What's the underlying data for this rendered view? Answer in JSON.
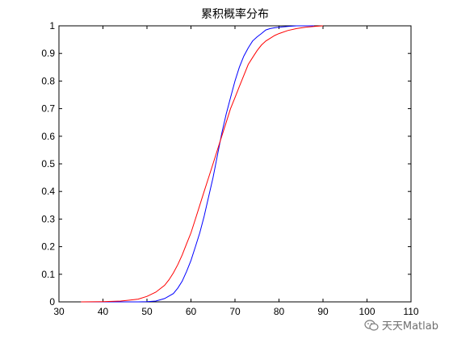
{
  "chart_data": {
    "type": "line",
    "title": "累积概率分布",
    "xlabel": "",
    "ylabel": "",
    "xlim": [
      30,
      110
    ],
    "ylim": [
      0,
      1
    ],
    "xticks": [
      "30",
      "40",
      "50",
      "60",
      "70",
      "80",
      "90",
      "100",
      "110"
    ],
    "yticks": [
      "0",
      "0.1",
      "0.2",
      "0.3",
      "0.4",
      "0.5",
      "0.6",
      "0.7",
      "0.8",
      "0.9",
      "1"
    ],
    "grid": false,
    "legend": "none",
    "series": [
      {
        "color": "#0000ff",
        "x": [
          35,
          40,
          45,
          48,
          50,
          52,
          54,
          56,
          57,
          58,
          59,
          60,
          61,
          62,
          63,
          64,
          65,
          66,
          67,
          68,
          69,
          70,
          71,
          72,
          73,
          74,
          75,
          76,
          77,
          78,
          79,
          80,
          82,
          84,
          86,
          88
        ],
        "y": [
          0,
          0,
          0,
          0,
          0.001,
          0.003,
          0.012,
          0.03,
          0.05,
          0.075,
          0.11,
          0.15,
          0.2,
          0.25,
          0.31,
          0.38,
          0.45,
          0.53,
          0.61,
          0.68,
          0.74,
          0.8,
          0.85,
          0.89,
          0.92,
          0.945,
          0.96,
          0.972,
          0.985,
          0.99,
          0.993,
          0.995,
          0.998,
          1.0,
          1.0,
          1.0
        ]
      },
      {
        "color": "#ff0000",
        "x": [
          35,
          40,
          44,
          46,
          48,
          50,
          52,
          54,
          55,
          56,
          57,
          58,
          59,
          60,
          61,
          62,
          63,
          64,
          65,
          66,
          67,
          68,
          69,
          70,
          71,
          72,
          73,
          74,
          75,
          76,
          77,
          78,
          79,
          80,
          82,
          84,
          86,
          88,
          90
        ],
        "y": [
          0,
          0.001,
          0.003,
          0.006,
          0.01,
          0.02,
          0.035,
          0.06,
          0.08,
          0.105,
          0.135,
          0.17,
          0.21,
          0.25,
          0.3,
          0.35,
          0.4,
          0.45,
          0.5,
          0.55,
          0.6,
          0.65,
          0.7,
          0.74,
          0.78,
          0.82,
          0.86,
          0.885,
          0.91,
          0.93,
          0.945,
          0.955,
          0.965,
          0.972,
          0.983,
          0.99,
          0.995,
          0.998,
          1.0
        ]
      }
    ]
  },
  "watermark": {
    "text": "天天Matlab",
    "icon": "wechat-icon"
  }
}
